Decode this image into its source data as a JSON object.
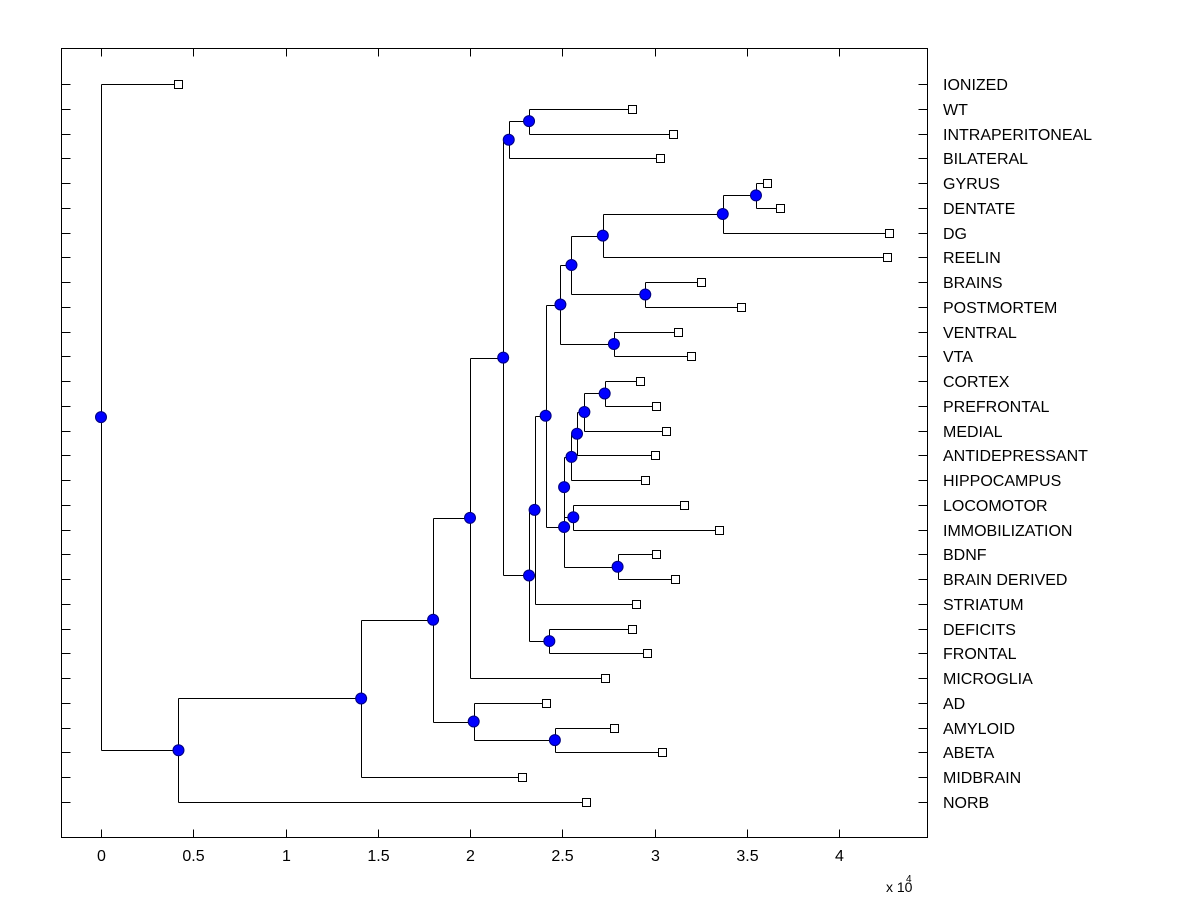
{
  "chart_data": {
    "type": "dendrogram",
    "title": "",
    "xlabel": "",
    "ylabel": "",
    "x_multiplier_label": "x 10",
    "x_multiplier_exponent": "4",
    "xlim": [
      -0.21,
      4.55
    ],
    "xticks": [
      0,
      0.5,
      1,
      1.5,
      2,
      2.5,
      3,
      3.5,
      4
    ],
    "xtick_labels": [
      "0",
      "0.5",
      "1",
      "1.5",
      "2",
      "2.5",
      "3",
      "3.5",
      "4"
    ],
    "grid": false,
    "colors": {
      "node_fill": "#0000ff",
      "node_stroke": "#000080",
      "line": "#000000",
      "leaf_fill": "#ffffff"
    },
    "leaves": [
      {
        "id": "IONIZED",
        "label": "IONIZED",
        "x": 0.42
      },
      {
        "id": "WT",
        "label": "WT",
        "x": 2.88
      },
      {
        "id": "INTRAPERITONEAL",
        "label": "INTRAPERITONEAL",
        "x": 3.1
      },
      {
        "id": "BILATERAL",
        "label": "BILATERAL",
        "x": 3.03
      },
      {
        "id": "GYRUS",
        "label": "GYRUS",
        "x": 3.61
      },
      {
        "id": "DENTATE",
        "label": "DENTATE",
        "x": 3.68
      },
      {
        "id": "DG",
        "label": "DG",
        "x": 4.27
      },
      {
        "id": "REELIN",
        "label": "REELIN",
        "x": 4.26
      },
      {
        "id": "BRAINS",
        "label": "BRAINS",
        "x": 3.25
      },
      {
        "id": "POSTMORTEM",
        "label": "POSTMORTEM",
        "x": 3.47
      },
      {
        "id": "VENTRAL",
        "label": "VENTRAL",
        "x": 3.13
      },
      {
        "id": "VTA",
        "label": "VTA",
        "x": 3.2
      },
      {
        "id": "CORTEX",
        "label": "CORTEX",
        "x": 2.92
      },
      {
        "id": "PREFRONTAL",
        "label": "PREFRONTAL",
        "x": 3.01
      },
      {
        "id": "MEDIAL",
        "label": "MEDIAL",
        "x": 3.06
      },
      {
        "id": "ANTIDEPRESSANT",
        "label": "ANTIDEPRESSANT",
        "x": 3.0
      },
      {
        "id": "HIPPOCAMPUS",
        "label": "HIPPOCAMPUS",
        "x": 2.95
      },
      {
        "id": "LOCOMOTOR",
        "label": "LOCOMOTOR",
        "x": 3.16
      },
      {
        "id": "IMMOBILIZATION",
        "label": "IMMOBILIZATION",
        "x": 3.35
      },
      {
        "id": "BDNF",
        "label": "BDNF",
        "x": 3.01
      },
      {
        "id": "BRAIN_DERIVED",
        "label": "BRAIN DERIVED",
        "x": 3.11
      },
      {
        "id": "STRIATUM",
        "label": "STRIATUM",
        "x": 2.9
      },
      {
        "id": "DEFICITS",
        "label": "DEFICITS",
        "x": 2.88
      },
      {
        "id": "FRONTAL",
        "label": "FRONTAL",
        "x": 2.96
      },
      {
        "id": "MICROGLIA",
        "label": "MICROGLIA",
        "x": 2.73
      },
      {
        "id": "AD",
        "label": "AD",
        "x": 2.41
      },
      {
        "id": "AMYLOID",
        "label": "AMYLOID",
        "x": 2.78
      },
      {
        "id": "ABETA",
        "label": "ABETA",
        "x": 3.04
      },
      {
        "id": "MIDBRAIN",
        "label": "MIDBRAIN",
        "x": 2.28
      },
      {
        "id": "NORB",
        "label": "NORB",
        "x": 2.63
      }
    ],
    "internal_nodes": [
      {
        "id": "n_wt_intra",
        "x": 2.32,
        "children": [
          "WT",
          "INTRAPERITONEAL"
        ]
      },
      {
        "id": "n_top",
        "x": 2.21,
        "children": [
          "n_wt_intra",
          "BILATERAL"
        ]
      },
      {
        "id": "n_gyrus_dentate",
        "x": 3.55,
        "children": [
          "GYRUS",
          "DENTATE"
        ]
      },
      {
        "id": "n_gd_dg",
        "x": 3.37,
        "children": [
          "n_gyrus_dentate",
          "DG"
        ]
      },
      {
        "id": "n_reelin",
        "x": 2.72,
        "children": [
          "n_gd_dg",
          "REELIN"
        ]
      },
      {
        "id": "n_brains",
        "x": 2.95,
        "children": [
          "BRAINS",
          "POSTMORTEM"
        ]
      },
      {
        "id": "n_hippo_grp",
        "x": 2.55,
        "children": [
          "n_reelin",
          "n_brains"
        ]
      },
      {
        "id": "n_vta",
        "x": 2.78,
        "children": [
          "VENTRAL",
          "VTA"
        ]
      },
      {
        "id": "n_upper_mid",
        "x": 2.49,
        "children": [
          "n_hippo_grp",
          "n_vta"
        ]
      },
      {
        "id": "n_cortex",
        "x": 2.73,
        "children": [
          "CORTEX",
          "PREFRONTAL"
        ]
      },
      {
        "id": "n_medial",
        "x": 2.62,
        "children": [
          "n_cortex",
          "MEDIAL"
        ]
      },
      {
        "id": "n_antidep",
        "x": 2.58,
        "children": [
          "n_medial",
          "ANTIDEPRESSANT"
        ]
      },
      {
        "id": "n_hippocampus",
        "x": 2.55,
        "children": [
          "n_antidep",
          "HIPPOCAMPUS"
        ]
      },
      {
        "id": "n_loco",
        "x": 2.56,
        "children": [
          "LOCOMOTOR",
          "IMMOBILIZATION"
        ]
      },
      {
        "id": "n_loco_join",
        "x": 2.51,
        "children": [
          "n_hippocampus",
          "n_loco"
        ]
      },
      {
        "id": "n_bdnf",
        "x": 2.8,
        "children": [
          "BDNF",
          "BRAIN_DERIVED"
        ]
      },
      {
        "id": "n_bdnf_join",
        "x": 2.51,
        "children": [
          "n_loco_join",
          "n_bdnf"
        ]
      },
      {
        "id": "n_mid_join",
        "x": 2.41,
        "children": [
          "n_upper_mid",
          "n_bdnf_join"
        ]
      },
      {
        "id": "n_striatum",
        "x": 2.35,
        "children": [
          "n_mid_join",
          "STRIATUM"
        ]
      },
      {
        "id": "n_deficits",
        "x": 2.43,
        "children": [
          "DEFICITS",
          "FRONTAL"
        ]
      },
      {
        "id": "n_striatum_def",
        "x": 2.32,
        "children": [
          "n_striatum",
          "n_deficits"
        ]
      },
      {
        "id": "n_big",
        "x": 2.18,
        "children": [
          "n_top",
          "n_striatum_def"
        ]
      },
      {
        "id": "n_microglia",
        "x": 2.0,
        "children": [
          "n_big",
          "MICROGLIA"
        ]
      },
      {
        "id": "n_amyloid",
        "x": 2.46,
        "children": [
          "AMYLOID",
          "ABETA"
        ]
      },
      {
        "id": "n_ad",
        "x": 2.02,
        "children": [
          "AD",
          "n_amyloid"
        ]
      },
      {
        "id": "n_main",
        "x": 1.8,
        "children": [
          "n_microglia",
          "n_ad"
        ]
      },
      {
        "id": "n_midbrain",
        "x": 1.41,
        "children": [
          "n_main",
          "MIDBRAIN"
        ]
      },
      {
        "id": "n_norb",
        "x": 0.42,
        "children": [
          "n_midbrain",
          "NORB"
        ]
      },
      {
        "id": "root",
        "x": 0.0,
        "children": [
          "IONIZED",
          "n_norb"
        ]
      }
    ]
  }
}
